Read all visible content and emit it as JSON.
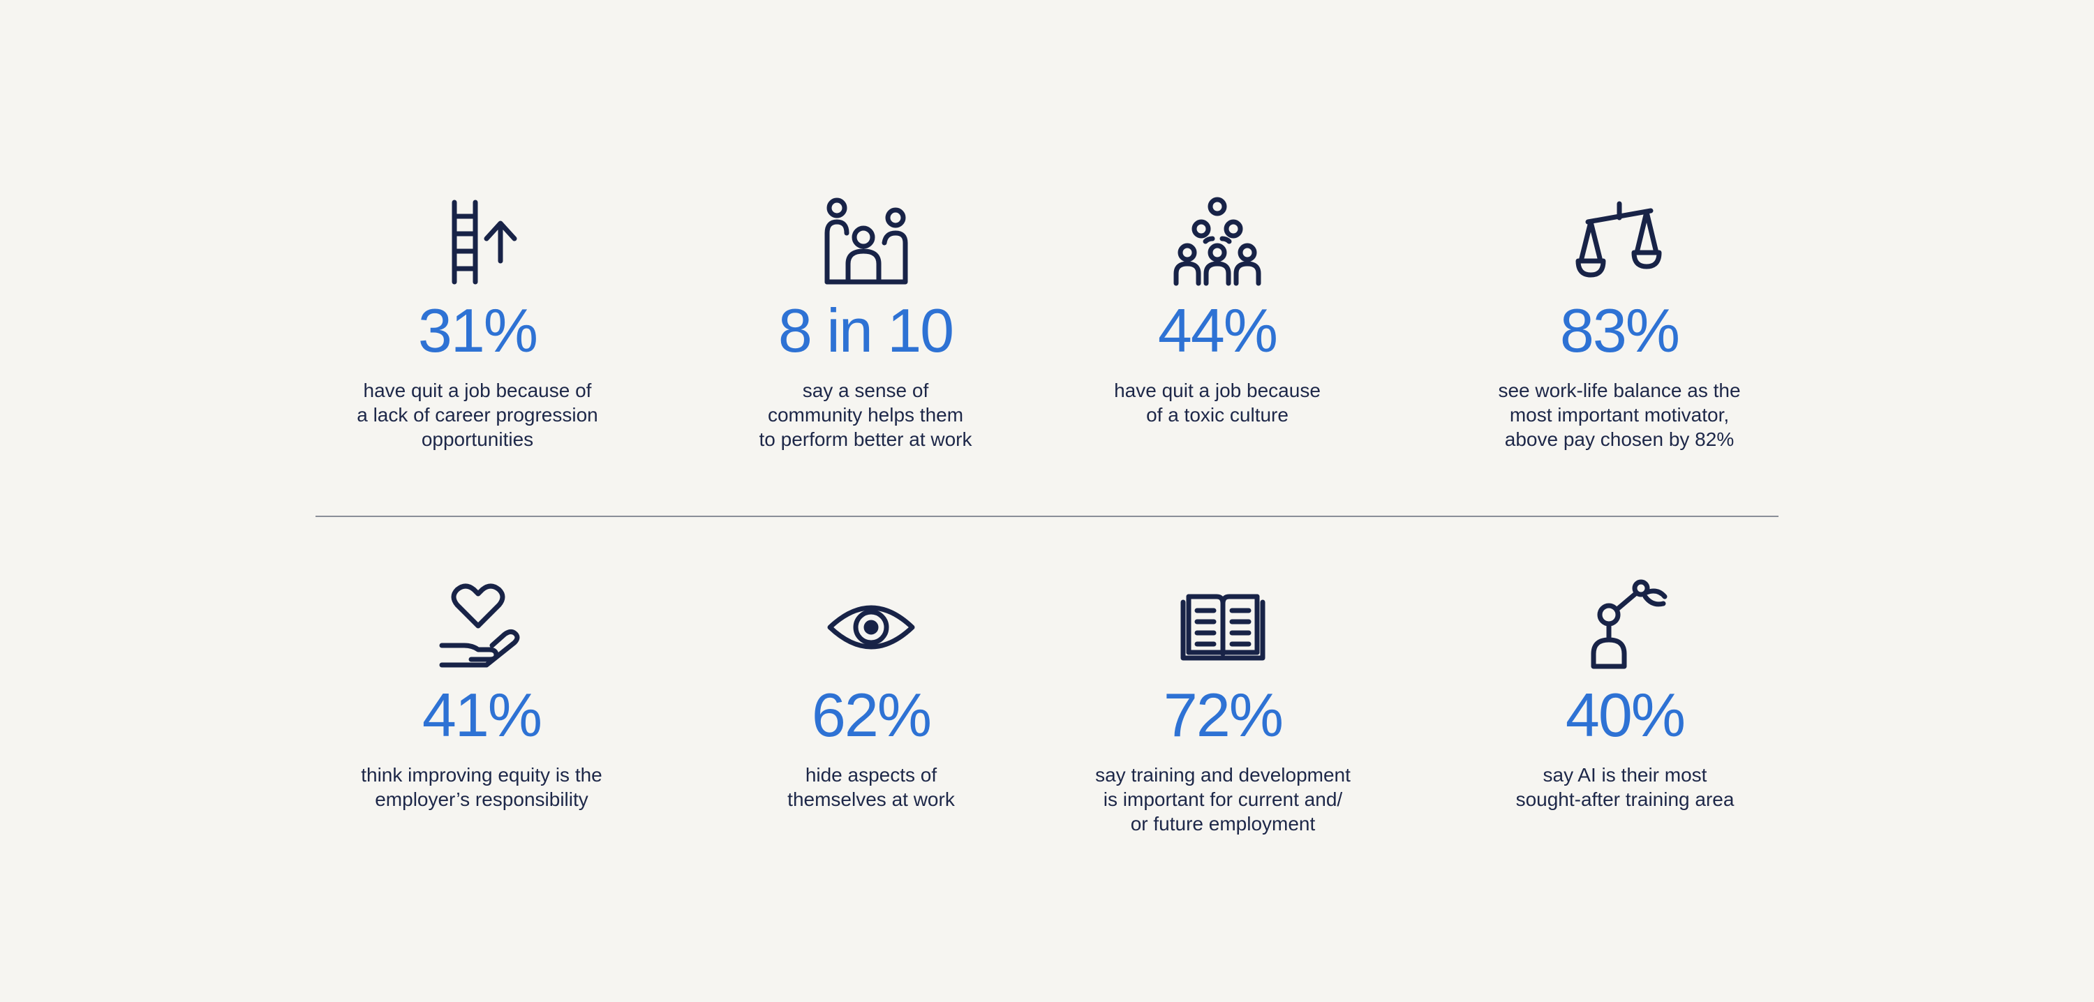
{
  "stats": [
    {
      "icon": "ladder-arrow-up-icon",
      "value": "31%",
      "description": "have quit a job because of\na lack of career progression\nopportunities"
    },
    {
      "icon": "community-people-icon",
      "value": "8 in 10",
      "description": "say a sense of\ncommunity helps them\nto perform better at work"
    },
    {
      "icon": "group-pyramid-icon",
      "value": "44%",
      "description": "have quit a job because\nof a toxic culture"
    },
    {
      "icon": "balance-scale-icon",
      "value": "83%",
      "description": "see work-life balance as the\nmost important motivator,\nabove pay chosen by 82%"
    },
    {
      "icon": "heart-in-hand-icon",
      "value": "41%",
      "description": "think improving equity is the\nemployer’s responsibility"
    },
    {
      "icon": "eye-icon",
      "value": "62%",
      "description": "hide aspects of\nthemselves at work"
    },
    {
      "icon": "open-book-icon",
      "value": "72%",
      "description": "say training and development\nis important for current and/\nor future employment"
    },
    {
      "icon": "robot-arm-icon",
      "value": "40%",
      "description": "say AI is their most\nsought-after training area"
    }
  ],
  "colors": {
    "background": "#f6f5f1",
    "accent": "#2e72d4",
    "icon_stroke": "#182347",
    "text": "#1d2748",
    "divider": "#8a8e98"
  }
}
